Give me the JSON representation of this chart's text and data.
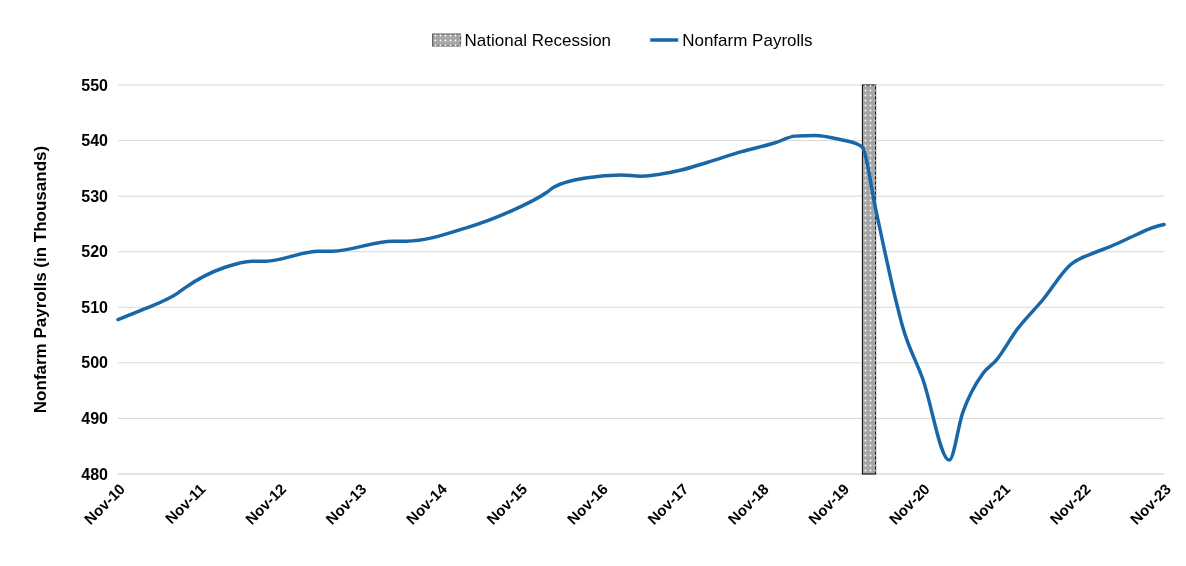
{
  "chart_data": {
    "type": "line",
    "ylabel": "Nonfarm Payrolls (in Thousands)",
    "x": [
      "2010-11",
      "2011-03",
      "2011-08",
      "2011-09",
      "2012-03",
      "2012-07",
      "2012-09",
      "2013-05",
      "2013-07",
      "2014-04",
      "2014-06",
      "2015-03",
      "2015-09",
      "2016-03",
      "2016-04",
      "2016-09",
      "2017-02",
      "2017-05",
      "2017-11",
      "2018-03",
      "2018-08",
      "2019-01",
      "2019-04",
      "2019-07",
      "2019-11",
      "2020-01",
      "2020-02",
      "2020-04",
      "2020-07",
      "2020-08",
      "2020-11",
      "2021-03",
      "2021-05",
      "2021-08",
      "2021-10",
      "2022-01",
      "2022-05",
      "2022-09",
      "2023-01",
      "2023-03",
      "2023-07",
      "2023-09",
      "2023-11"
    ],
    "series": [
      {
        "name": "Nonfarm Payrolls",
        "color": "#1a67a8",
        "values": [
          507.8,
          509.7,
          512.6,
          513.5,
          517.2,
          518.3,
          518.3,
          520.1,
          520.1,
          521.9,
          521.9,
          524.3,
          527,
          530.7,
          531.6,
          533.3,
          533.8,
          533.6,
          534.7,
          536.1,
          538,
          539.6,
          540.8,
          540.9,
          540.1,
          539.5,
          538.8,
          527.7,
          511.4,
          506.6,
          497.1,
          482.5,
          491,
          498.1,
          500.5,
          505.9,
          511.4,
          517.6,
          520,
          520.9,
          523.1,
          524.2,
          524.9
        ]
      }
    ],
    "xlim": [
      "2010-11",
      "2023-11"
    ],
    "xticks": [
      {
        "value": "2010-11",
        "label": "Nov-10"
      },
      {
        "value": "2011-11",
        "label": "Nov-11"
      },
      {
        "value": "2012-11",
        "label": "Nov-12"
      },
      {
        "value": "2013-11",
        "label": "Nov-13"
      },
      {
        "value": "2014-11",
        "label": "Nov-14"
      },
      {
        "value": "2015-11",
        "label": "Nov-15"
      },
      {
        "value": "2016-11",
        "label": "Nov-16"
      },
      {
        "value": "2017-11",
        "label": "Nov-17"
      },
      {
        "value": "2018-11",
        "label": "Nov-18"
      },
      {
        "value": "2019-11",
        "label": "Nov-19"
      },
      {
        "value": "2020-11",
        "label": "Nov-20"
      },
      {
        "value": "2021-11",
        "label": "Nov-21"
      },
      {
        "value": "2022-11",
        "label": "Nov-22"
      },
      {
        "value": "2023-11",
        "label": "Nov-23"
      }
    ],
    "ylim": [
      480,
      550
    ],
    "yticks": [
      480,
      490,
      500,
      510,
      520,
      530,
      540,
      550
    ],
    "bands": [
      {
        "axis": "x",
        "from": "2020-02",
        "to": "2020-04",
        "label": "National Recession",
        "color": "#a6a6a6"
      }
    ],
    "grid": "y",
    "legend": "top",
    "line_style": "solid"
  }
}
